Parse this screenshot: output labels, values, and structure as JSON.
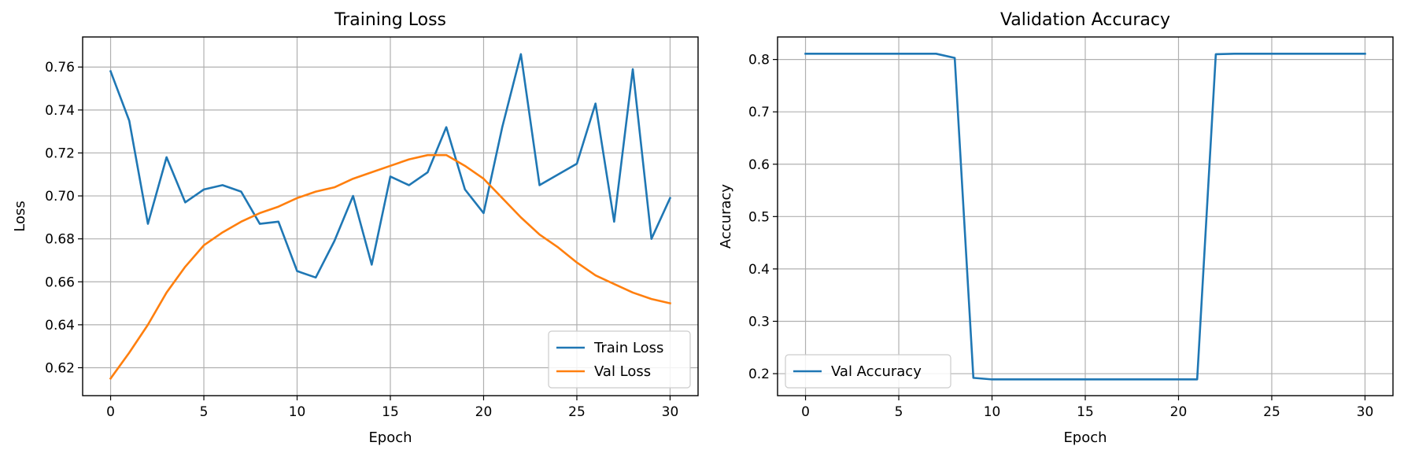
{
  "chart_data": [
    {
      "type": "line",
      "title": "Training Loss",
      "xlabel": "Epoch",
      "ylabel": "Loss",
      "xlim": [
        -1.5,
        31.5
      ],
      "ylim": [
        0.607,
        0.774
      ],
      "xticks": [
        0,
        5,
        10,
        15,
        20,
        25,
        30
      ],
      "yticks": [
        0.62,
        0.64,
        0.66,
        0.68,
        0.7,
        0.72,
        0.74,
        0.76
      ],
      "ytick_labels": [
        "0.62",
        "0.64",
        "0.66",
        "0.68",
        "0.70",
        "0.72",
        "0.74",
        "0.76"
      ],
      "grid": true,
      "legend": "lower-right",
      "x": [
        0,
        1,
        2,
        3,
        4,
        5,
        6,
        7,
        8,
        9,
        10,
        11,
        12,
        13,
        14,
        15,
        16,
        17,
        18,
        19,
        20,
        21,
        22,
        23,
        24,
        25,
        26,
        27,
        28,
        29,
        30
      ],
      "series": [
        {
          "name": "Train Loss",
          "color": "#1f77b4",
          "values": [
            0.758,
            0.735,
            0.687,
            0.718,
            0.697,
            0.703,
            0.705,
            0.702,
            0.687,
            0.688,
            0.665,
            0.662,
            0.679,
            0.7,
            0.668,
            0.709,
            0.705,
            0.711,
            0.732,
            0.703,
            0.692,
            0.732,
            0.766,
            0.705,
            0.71,
            0.715,
            0.743,
            0.688,
            0.759,
            0.68,
            0.699
          ]
        },
        {
          "name": "Val Loss",
          "color": "#ff7f0e",
          "values": [
            0.615,
            0.627,
            0.64,
            0.655,
            0.667,
            0.677,
            0.683,
            0.688,
            0.692,
            0.695,
            0.699,
            0.702,
            0.704,
            0.708,
            0.711,
            0.714,
            0.717,
            0.719,
            0.719,
            0.714,
            0.708,
            0.699,
            0.69,
            0.682,
            0.676,
            0.669,
            0.663,
            0.659,
            0.655,
            0.652,
            0.65
          ]
        }
      ]
    },
    {
      "type": "line",
      "title": "Validation Accuracy",
      "xlabel": "Epoch",
      "ylabel": "Accuracy",
      "xlim": [
        -1.5,
        31.5
      ],
      "ylim": [
        0.158,
        0.843
      ],
      "xticks": [
        0,
        5,
        10,
        15,
        20,
        25,
        30
      ],
      "yticks": [
        0.2,
        0.3,
        0.4,
        0.5,
        0.6,
        0.7,
        0.8
      ],
      "ytick_labels": [
        "0.2",
        "0.3",
        "0.4",
        "0.5",
        "0.6",
        "0.7",
        "0.8"
      ],
      "grid": true,
      "legend": "lower-left",
      "x": [
        0,
        1,
        2,
        3,
        4,
        5,
        6,
        7,
        8,
        9,
        10,
        11,
        12,
        13,
        14,
        15,
        16,
        17,
        18,
        19,
        20,
        21,
        22,
        23,
        24,
        25,
        26,
        27,
        28,
        29,
        30
      ],
      "series": [
        {
          "name": "Val Accuracy",
          "color": "#1f77b4",
          "values": [
            0.811,
            0.811,
            0.811,
            0.811,
            0.811,
            0.811,
            0.811,
            0.811,
            0.803,
            0.192,
            0.189,
            0.189,
            0.189,
            0.189,
            0.189,
            0.189,
            0.189,
            0.189,
            0.189,
            0.189,
            0.189,
            0.189,
            0.81,
            0.811,
            0.811,
            0.811,
            0.811,
            0.811,
            0.811,
            0.811,
            0.811
          ]
        }
      ]
    }
  ]
}
